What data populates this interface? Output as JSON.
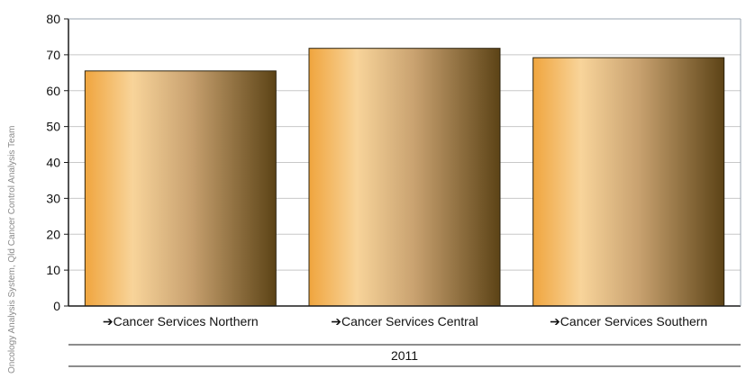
{
  "source_note": "Oncology Analysis System, Qld Cancer Control Analysis Team",
  "chart_data": {
    "type": "bar",
    "categories": [
      "Cancer Services Northern",
      "Cancer Services Central",
      "Cancer Services Southern"
    ],
    "group_label": "2011",
    "series": [
      {
        "values": [
          65.5,
          71.8,
          69.2
        ]
      }
    ],
    "ylim": [
      0,
      80
    ],
    "yticks": [
      0,
      10,
      20,
      30,
      40,
      50,
      60,
      70,
      80
    ],
    "grid": true,
    "legend": "none",
    "colors": {
      "bar_light": "#f8d49a",
      "bar_mid": "#c9a270",
      "bar_dark": "#5c4316",
      "bar_left": "#f0a53e",
      "grid": "#c8c8c8",
      "axis": "#1a1a1a"
    }
  }
}
